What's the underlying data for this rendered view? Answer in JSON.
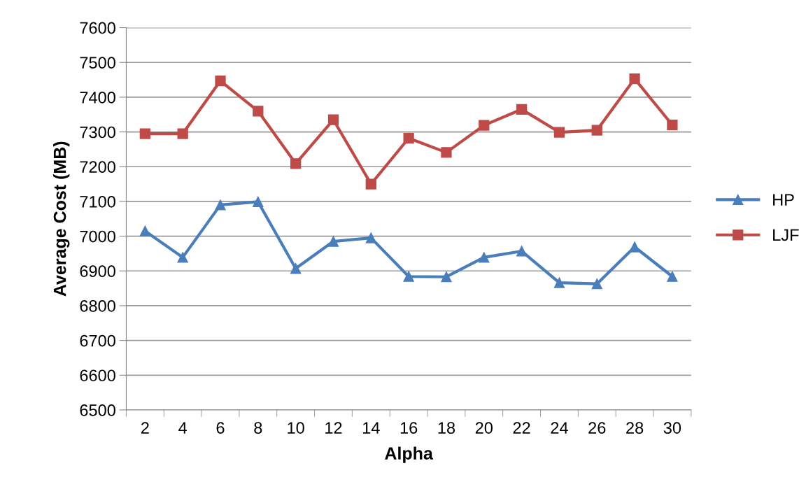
{
  "chart_data": {
    "type": "line",
    "xlabel": "Alpha",
    "ylabel": "Average Cost (MB)",
    "categories": [
      "2",
      "4",
      "6",
      "8",
      "10",
      "12",
      "14",
      "16",
      "18",
      "20",
      "22",
      "24",
      "26",
      "28",
      "30"
    ],
    "series": [
      {
        "name": "HP",
        "color": "#4a7ebb",
        "marker": "triangle",
        "values": [
          7015,
          6939,
          7090,
          7099,
          6907,
          6985,
          6995,
          6884,
          6883,
          6939,
          6957,
          6866,
          6863,
          6969,
          6884
        ]
      },
      {
        "name": "LJF",
        "color": "#be4b48",
        "marker": "square",
        "values": [
          7295,
          7295,
          7447,
          7360,
          7209,
          7335,
          7150,
          7282,
          7241,
          7319,
          7365,
          7299,
          7305,
          7453,
          7320
        ]
      }
    ],
    "ylim": [
      6500,
      7600
    ],
    "yticks": [
      6500,
      6600,
      6700,
      6800,
      6900,
      7000,
      7100,
      7200,
      7300,
      7400,
      7500,
      7600
    ],
    "grid": "y",
    "legend": "right",
    "line_style": "solid"
  }
}
